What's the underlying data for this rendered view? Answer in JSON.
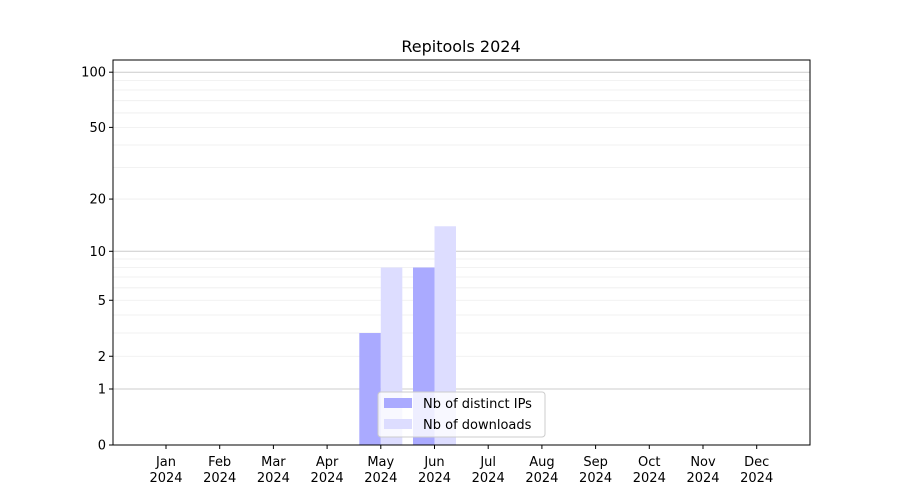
{
  "chart_data": {
    "type": "bar",
    "title": "Repitools 2024",
    "xlabel": "",
    "ylabel": "",
    "yscale": "log(1+y)",
    "ylim": [
      0,
      117
    ],
    "yticks": [
      0,
      1,
      2,
      5,
      10,
      20,
      50,
      100
    ],
    "grid": true,
    "legend_placement": "bottom-center",
    "categories": [
      "Jan\n2024",
      "Feb\n2024",
      "Mar\n2024",
      "Apr\n2024",
      "May\n2024",
      "Jun\n2024",
      "Jul\n2024",
      "Aug\n2024",
      "Sep\n2024",
      "Oct\n2024",
      "Nov\n2024",
      "Dec\n2024"
    ],
    "series": [
      {
        "name": "Nb of distinct IPs",
        "color": "#aaaaff",
        "values": [
          0,
          0,
          0,
          0,
          3,
          8,
          0,
          0,
          0,
          0,
          0,
          0
        ]
      },
      {
        "name": "Nb of downloads",
        "color": "#ddddff",
        "values": [
          0,
          0,
          0,
          0,
          8,
          14,
          0,
          0,
          0,
          0,
          0,
          0
        ]
      }
    ]
  }
}
